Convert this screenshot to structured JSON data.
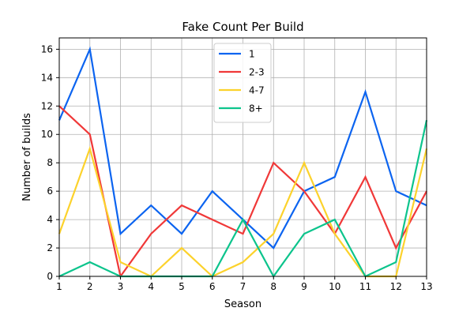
{
  "chart_data": {
    "type": "line",
    "title": "Fake Count Per Build",
    "xlabel": "Season",
    "ylabel": "Number of builds",
    "x": [
      1,
      2,
      3,
      4,
      5,
      6,
      7,
      8,
      9,
      10,
      11,
      12,
      13
    ],
    "xlim": [
      1,
      13
    ],
    "ylim": [
      0,
      16.8
    ],
    "yticks": [
      0,
      2,
      4,
      6,
      8,
      10,
      12,
      14,
      16
    ],
    "grid": true,
    "legend_position": "top-center",
    "series": [
      {
        "name": "1",
        "color": "#0c64f0",
        "values": [
          11,
          16,
          3,
          5,
          3,
          6,
          4,
          2,
          6,
          7,
          13,
          6,
          5
        ]
      },
      {
        "name": "2-3",
        "color": "#f03838",
        "values": [
          12,
          10,
          0,
          3,
          5,
          4,
          3,
          8,
          6,
          3,
          7,
          2,
          6
        ]
      },
      {
        "name": "4-7",
        "color": "#fcd22c",
        "values": [
          3,
          9,
          1,
          0,
          2,
          0,
          1,
          3,
          8,
          3,
          0,
          0,
          9
        ]
      },
      {
        "name": "8+",
        "color": "#0cc48c",
        "values": [
          0,
          1,
          0,
          0,
          0,
          0,
          4,
          0,
          3,
          4,
          0,
          1,
          11
        ]
      }
    ]
  }
}
